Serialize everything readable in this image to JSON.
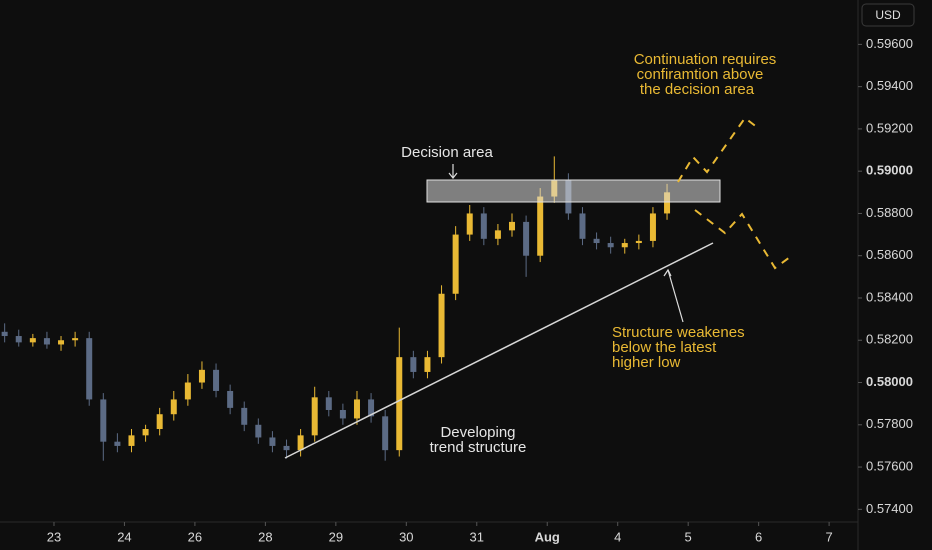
{
  "chart_data": {
    "type": "candlestick",
    "currency": "USD",
    "x": [
      -0.7,
      -0.5,
      -0.3,
      -0.1,
      0.1,
      0.3,
      0.5,
      0.7,
      0.9,
      1.1,
      1.3,
      1.5,
      1.7,
      1.9,
      2.1,
      2.3,
      2.5,
      2.7,
      2.9,
      3.1,
      3.3,
      3.5,
      3.7,
      3.9,
      4.1,
      4.3,
      4.5,
      4.7,
      4.9,
      5.1,
      5.3,
      5.5,
      5.7,
      5.9,
      6.1,
      6.3,
      6.5,
      6.7,
      6.9,
      7.1,
      7.3,
      7.5,
      7.7,
      7.9,
      8.1,
      8.3,
      8.5,
      8.7
    ],
    "open": [
      0.5824,
      0.5822,
      0.5819,
      0.5821,
      0.5818,
      0.582,
      0.5821,
      0.5792,
      0.5772,
      0.577,
      0.5775,
      0.5778,
      0.5785,
      0.5792,
      0.58,
      0.5806,
      0.5796,
      0.5788,
      0.578,
      0.5774,
      0.577,
      0.5768,
      0.5775,
      0.5793,
      0.5787,
      0.5783,
      0.5792,
      0.5784,
      0.5768,
      0.5812,
      0.5805,
      0.5812,
      0.5842,
      0.587,
      0.588,
      0.5868,
      0.5872,
      0.5876,
      0.586,
      0.5888,
      0.5896,
      0.588,
      0.5868,
      0.5866,
      0.5864,
      0.5866,
      0.5867,
      0.588
    ],
    "high": [
      0.5828,
      0.5825,
      0.5823,
      0.5824,
      0.5822,
      0.5824,
      0.5824,
      0.5795,
      0.5776,
      0.5778,
      0.578,
      0.5788,
      0.5796,
      0.5804,
      0.581,
      0.5809,
      0.5799,
      0.5791,
      0.5783,
      0.5777,
      0.5773,
      0.5778,
      0.5798,
      0.5796,
      0.579,
      0.5796,
      0.5795,
      0.5787,
      0.5826,
      0.5815,
      0.5815,
      0.5846,
      0.5874,
      0.5884,
      0.5883,
      0.5875,
      0.588,
      0.5879,
      0.5892,
      0.5907,
      0.5899,
      0.5883,
      0.5871,
      0.5869,
      0.5868,
      0.587,
      0.5883,
      0.5894
    ],
    "low": [
      0.5819,
      0.5817,
      0.5817,
      0.5816,
      0.5815,
      0.5817,
      0.5789,
      0.5763,
      0.5767,
      0.5767,
      0.5772,
      0.5775,
      0.5782,
      0.5789,
      0.5797,
      0.5793,
      0.5785,
      0.5777,
      0.5771,
      0.5767,
      0.5764,
      0.5765,
      0.5772,
      0.5784,
      0.578,
      0.578,
      0.5781,
      0.5763,
      0.5765,
      0.5802,
      0.5802,
      0.5809,
      0.5839,
      0.5867,
      0.5865,
      0.5865,
      0.5869,
      0.585,
      0.5857,
      0.5885,
      0.5877,
      0.5865,
      0.5863,
      0.5861,
      0.5861,
      0.5863,
      0.5864,
      0.5877
    ],
    "close": [
      0.5822,
      0.5819,
      0.5821,
      0.5818,
      0.582,
      0.5821,
      0.5792,
      0.5772,
      0.577,
      0.5775,
      0.5778,
      0.5785,
      0.5792,
      0.58,
      0.5806,
      0.5796,
      0.5788,
      0.578,
      0.5774,
      0.577,
      0.5768,
      0.5775,
      0.5793,
      0.5787,
      0.5783,
      0.5792,
      0.5784,
      0.5768,
      0.5812,
      0.5805,
      0.5812,
      0.5842,
      0.587,
      0.588,
      0.5868,
      0.5872,
      0.5876,
      0.586,
      0.5888,
      0.5896,
      0.588,
      0.5868,
      0.5866,
      0.5864,
      0.5866,
      0.5867,
      0.588,
      0.589
    ],
    "up_color": "#e9b934",
    "down_color": "#5c6b85",
    "xlim": [
      -0.766,
      11.41
    ],
    "ylim": [
      0.5734,
      0.5981
    ],
    "xticks": [
      {
        "value": 0,
        "label": "23"
      },
      {
        "value": 1,
        "label": "24"
      },
      {
        "value": 2,
        "label": "26"
      },
      {
        "value": 3,
        "label": "28"
      },
      {
        "value": 4,
        "label": "29"
      },
      {
        "value": 5,
        "label": "30"
      },
      {
        "value": 6,
        "label": "31"
      },
      {
        "value": 7,
        "label": "Aug",
        "emphasis": true
      },
      {
        "value": 8,
        "label": "4"
      },
      {
        "value": 9,
        "label": "5"
      },
      {
        "value": 10,
        "label": "6"
      },
      {
        "value": 11,
        "label": "7"
      }
    ],
    "yticks": [
      {
        "value": 0.596,
        "label": "0.59600"
      },
      {
        "value": 0.594,
        "label": "0.59400"
      },
      {
        "value": 0.592,
        "label": "0.59200"
      },
      {
        "value": 0.59,
        "label": "0.59000",
        "emphasis": true
      },
      {
        "value": 0.588,
        "label": "0.58800"
      },
      {
        "value": 0.586,
        "label": "0.58600"
      },
      {
        "value": 0.584,
        "label": "0.58400"
      },
      {
        "value": 0.582,
        "label": "0.58200"
      },
      {
        "value": 0.58,
        "label": "0.58000",
        "emphasis": true
      },
      {
        "value": 0.578,
        "label": "0.57800"
      },
      {
        "value": 0.576,
        "label": "0.57600"
      },
      {
        "value": 0.574,
        "label": "0.57400"
      }
    ],
    "grid": false,
    "annotations": [
      [
        "Decision area"
      ],
      [
        "Continuation requires",
        "confiramtion above",
        "the decision area"
      ],
      [
        "Structure weakenes",
        "below the latest",
        "higher low"
      ],
      [
        "Developing",
        "trend structure"
      ]
    ]
  }
}
